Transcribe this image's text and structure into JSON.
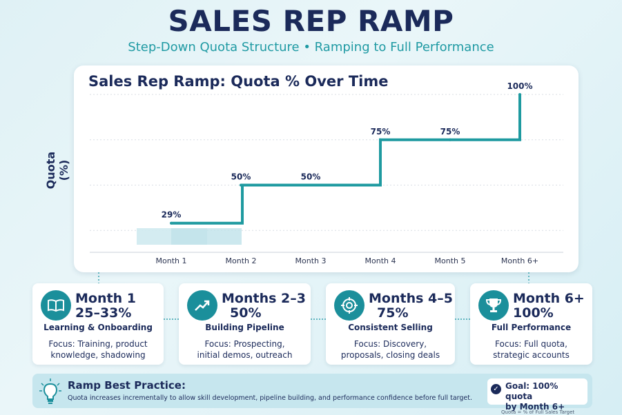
{
  "header": {
    "title": "SALES REP RAMP",
    "subtitle": "Step-Down Quota Structure • Ramping to Full Performance"
  },
  "chart_data": {
    "type": "line",
    "title": "Sales Rep Ramp: Quota % Over Time",
    "ylabel": "Quota (%)",
    "xlabel": "",
    "categories": [
      "Month 1",
      "Month 2",
      "Month 3",
      "Month 4",
      "Month 5",
      "Month 6+"
    ],
    "series": [
      {
        "values": [
          29,
          50,
          50,
          75,
          75,
          100
        ]
      }
    ],
    "point_labels": [
      "29%",
      "50%",
      "50%",
      "75%",
      "75%",
      "100%"
    ],
    "ylim": [
      0,
      100
    ],
    "step": true,
    "grid": "horizontal dotted",
    "line_color": "#1e9aa0",
    "range_band": {
      "label_range": "25–33%",
      "from": 25,
      "to": 33
    }
  },
  "stages": [
    {
      "heading_1": "Month 1",
      "heading_2": "25–33%",
      "subtitle": "Learning & Onboarding",
      "focus_1": "Focus: Training, product",
      "focus_2": "knowledge, shadowing",
      "icon": "book-icon"
    },
    {
      "heading_1": "Months 2–3",
      "heading_2": "50%",
      "subtitle": "Building Pipeline",
      "focus_1": "Focus: Prospecting,",
      "focus_2": "initial demos, outreach",
      "icon": "trend-up-icon"
    },
    {
      "heading_1": "Months 4–5",
      "heading_2": "75%",
      "subtitle": "Consistent Selling",
      "focus_1": "Focus: Discovery,",
      "focus_2": "proposals, closing deals",
      "icon": "target-icon"
    },
    {
      "heading_1": "Month 6+",
      "heading_2": "100%",
      "subtitle": "Full Performance",
      "focus_1": "Focus: Full quota,",
      "focus_2": "strategic accounts",
      "icon": "trophy-icon"
    }
  ],
  "best_practice": {
    "title": "Ramp Best Practice:",
    "text": "Quota increases incrementally to allow skill development, pipeline building, and performance confidence before full target.",
    "icon": "lightbulb-icon"
  },
  "goal": {
    "line_1": "Goal: 100% quota",
    "line_2": "by Month 6+",
    "icon": "check-icon"
  },
  "footnote": "Quota = % of Full Sales Target",
  "colors": {
    "navy": "#1b2a5a",
    "teal": "#1e9aa0",
    "accent_text": "#1f9aa3",
    "band": "#cce9ef"
  }
}
